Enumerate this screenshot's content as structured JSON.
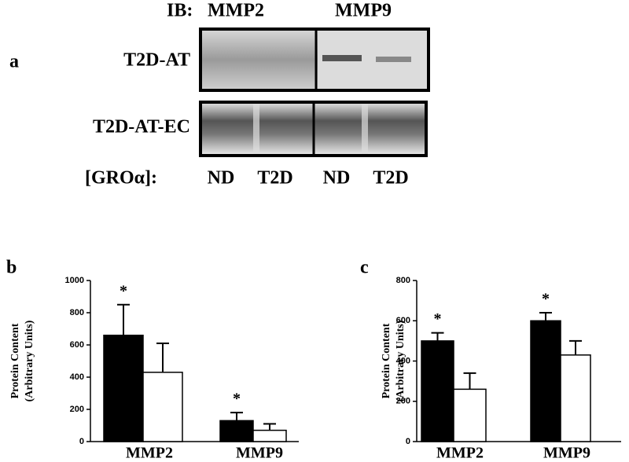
{
  "blot": {
    "panel": "a",
    "ib_label": "IB:",
    "antibodies": [
      "MMP2",
      "MMP9"
    ],
    "rows": [
      "T2D-AT",
      "T2D-AT-EC"
    ],
    "condition_label": "[GROα]:",
    "conditions": [
      "ND",
      "T2D",
      "ND",
      "T2D"
    ]
  },
  "chart_data": [
    {
      "type": "bar",
      "panel": "b",
      "ylabel": [
        "Protein Content",
        "(Arbitrary Units)"
      ],
      "categories": [
        "MMP2",
        "MMP9"
      ],
      "series": [
        {
          "color": "#000000",
          "values": [
            660,
            130
          ],
          "errors": [
            190,
            50
          ]
        },
        {
          "color": "#ffffff",
          "values": [
            430,
            70
          ],
          "errors": [
            180,
            40
          ]
        }
      ],
      "annotations": [
        "*",
        "*"
      ],
      "ylim": [
        0,
        1000
      ],
      "yticks": [
        0,
        200,
        400,
        600,
        800,
        1000
      ],
      "grid": false
    },
    {
      "type": "bar",
      "panel": "c",
      "ylabel": [
        "Protein Content",
        "(Arbitrary Units)"
      ],
      "categories": [
        "MMP2",
        "MMP9"
      ],
      "series": [
        {
          "color": "#000000",
          "values": [
            500,
            600
          ],
          "errors": [
            40,
            40
          ]
        },
        {
          "color": "#ffffff",
          "values": [
            260,
            430
          ],
          "errors": [
            80,
            70
          ]
        }
      ],
      "annotations": [
        "*",
        "*"
      ],
      "ylim": [
        0,
        800
      ],
      "yticks": [
        0,
        200,
        400,
        600,
        800
      ],
      "grid": false
    }
  ]
}
